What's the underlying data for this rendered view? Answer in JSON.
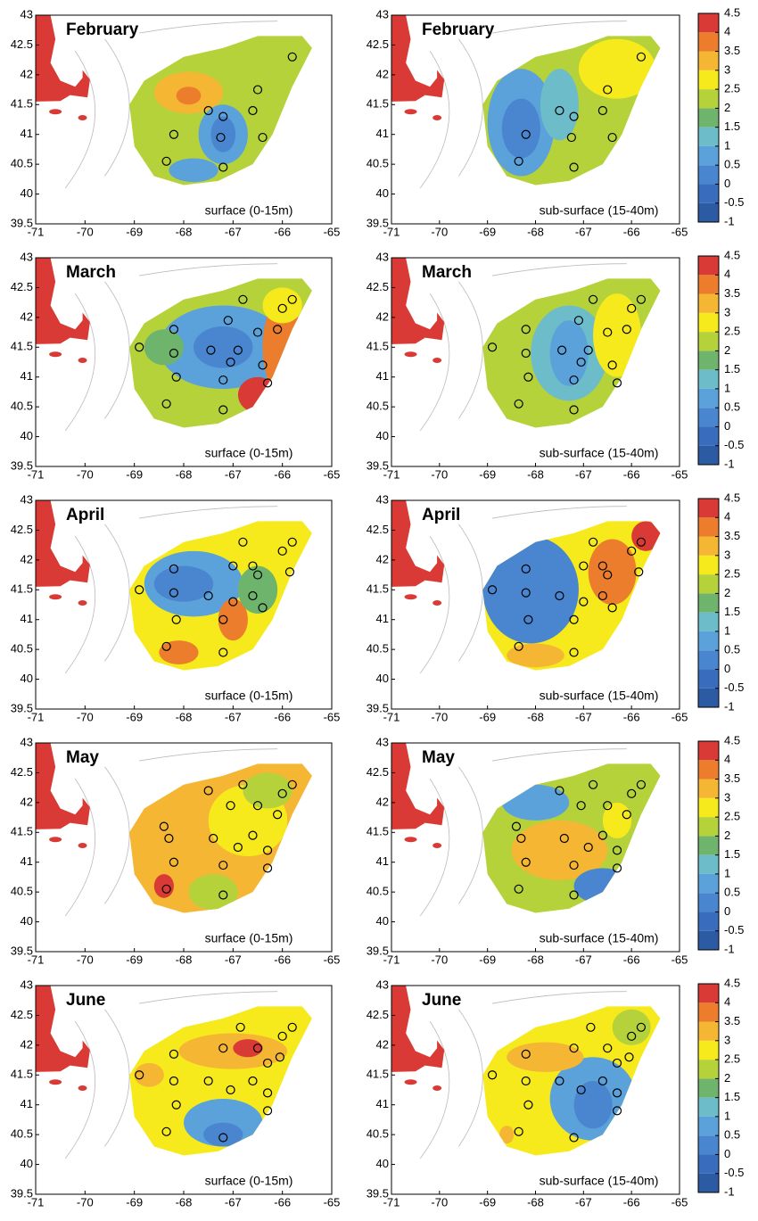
{
  "axes": {
    "xlim": [
      -71,
      -65
    ],
    "ylim": [
      39.5,
      43
    ],
    "xticks": [
      -71,
      -70,
      -69,
      -68,
      -67,
      -66,
      -65
    ],
    "yticks": [
      39.5,
      40,
      40.5,
      41,
      41.5,
      42,
      42.5,
      43
    ]
  },
  "colorbar": {
    "lim": [
      -1,
      4.5
    ],
    "ticks": [
      -1,
      -0.5,
      0,
      0.5,
      1,
      1.5,
      2,
      2.5,
      3,
      3.5,
      4,
      4.5
    ],
    "colors": [
      "#2c5aa3",
      "#3a6cbd",
      "#4a86cf",
      "#5ba2db",
      "#6dbcc9",
      "#6fb46c",
      "#b6d23b",
      "#f6ea1c",
      "#f5b633",
      "#eb7d2d",
      "#d93a35"
    ]
  },
  "layers": [
    "surface (0-15m)",
    "sub-surface (15-40m)"
  ],
  "months": [
    {
      "name": "February",
      "stations": [
        [
          -65.8,
          42.3
        ],
        [
          -66.5,
          41.75
        ],
        [
          -67.5,
          41.4
        ],
        [
          -67.2,
          41.3
        ],
        [
          -66.6,
          41.4
        ],
        [
          -68.2,
          41
        ],
        [
          -67.25,
          40.95
        ],
        [
          -66.4,
          40.95
        ],
        [
          -68.35,
          40.55
        ],
        [
          -67.2,
          40.45
        ]
      ]
    },
    {
      "name": "March",
      "stations": [
        [
          -66.8,
          42.3
        ],
        [
          -65.8,
          42.3
        ],
        [
          -66,
          42.15
        ],
        [
          -66.1,
          41.8
        ],
        [
          -66.5,
          41.75
        ],
        [
          -68.2,
          41.8
        ],
        [
          -67.1,
          41.95
        ],
        [
          -68.9,
          41.5
        ],
        [
          -68.2,
          41.4
        ],
        [
          -67.45,
          41.45
        ],
        [
          -66.9,
          41.45
        ],
        [
          -67.05,
          41.25
        ],
        [
          -66.4,
          41.2
        ],
        [
          -68.15,
          41
        ],
        [
          -67.2,
          40.95
        ],
        [
          -66.3,
          40.9
        ],
        [
          -68.35,
          40.55
        ],
        [
          -67.2,
          40.45
        ]
      ]
    },
    {
      "name": "April",
      "stations": [
        [
          -66.8,
          42.3
        ],
        [
          -65.8,
          42.3
        ],
        [
          -66,
          42.15
        ],
        [
          -66.6,
          41.9
        ],
        [
          -67,
          41.9
        ],
        [
          -68.2,
          41.85
        ],
        [
          -66.5,
          41.75
        ],
        [
          -65.85,
          41.8
        ],
        [
          -68.9,
          41.5
        ],
        [
          -68.2,
          41.45
        ],
        [
          -67.5,
          41.4
        ],
        [
          -66.6,
          41.4
        ],
        [
          -67,
          41.3
        ],
        [
          -67.2,
          41
        ],
        [
          -68.15,
          41
        ],
        [
          -66.4,
          41.2
        ],
        [
          -68.35,
          40.55
        ],
        [
          -67.2,
          40.45
        ]
      ]
    },
    {
      "name": "May",
      "stations": [
        [
          -67.5,
          42.2
        ],
        [
          -66.8,
          42.3
        ],
        [
          -65.8,
          42.3
        ],
        [
          -66,
          42.15
        ],
        [
          -67.05,
          41.95
        ],
        [
          -66.5,
          41.95
        ],
        [
          -68.4,
          41.6
        ],
        [
          -68.3,
          41.4
        ],
        [
          -67.4,
          41.4
        ],
        [
          -66.9,
          41.25
        ],
        [
          -66.6,
          41.45
        ],
        [
          -66.3,
          41.2
        ],
        [
          -66.1,
          41.8
        ],
        [
          -68.2,
          41
        ],
        [
          -67.2,
          40.95
        ],
        [
          -66.3,
          40.9
        ],
        [
          -68.35,
          40.55
        ],
        [
          -67.2,
          40.45
        ]
      ]
    },
    {
      "name": "June",
      "stations": [
        [
          -66.85,
          42.3
        ],
        [
          -65.8,
          42.3
        ],
        [
          -66,
          42.15
        ],
        [
          -68.2,
          41.85
        ],
        [
          -67.2,
          41.95
        ],
        [
          -66.5,
          41.95
        ],
        [
          -66.3,
          41.7
        ],
        [
          -66.05,
          41.8
        ],
        [
          -68.9,
          41.5
        ],
        [
          -68.2,
          41.4
        ],
        [
          -67.5,
          41.4
        ],
        [
          -67.05,
          41.25
        ],
        [
          -66.6,
          41.4
        ],
        [
          -66.3,
          41.2
        ],
        [
          -66.3,
          40.9
        ],
        [
          -68.15,
          41
        ],
        [
          -68.35,
          40.55
        ],
        [
          -67.2,
          40.45
        ]
      ]
    }
  ]
}
